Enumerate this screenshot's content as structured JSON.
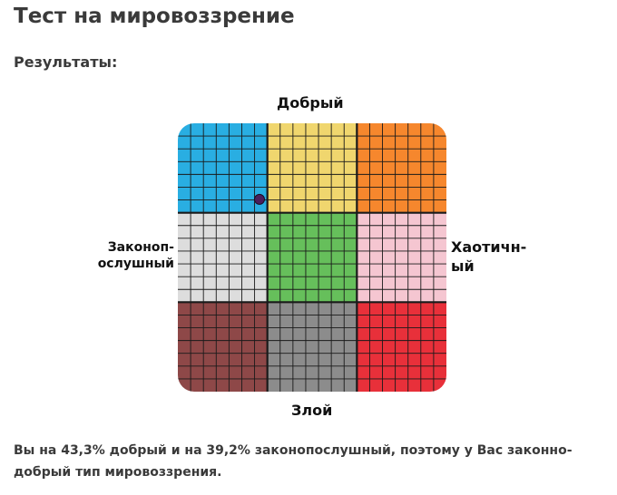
{
  "page": {
    "title": "Тест на мировоззрение",
    "subtitle": "Результаты:"
  },
  "chart_data": {
    "type": "alignment-grid",
    "axis_labels": {
      "top": "Добрый",
      "bottom": "Злой",
      "left": [
        "Законоп-",
        "ослушный"
      ],
      "right": [
        "Хаотичн-",
        "ый"
      ]
    },
    "cells": [
      [
        "#29aee2",
        "#f0d66e",
        "#f6872d"
      ],
      [
        "#dddddd",
        "#66bf5b",
        "#f5c6d1"
      ],
      [
        "#8e4848",
        "#8c8c8c",
        "#e8303a"
      ]
    ],
    "subdivisions": 7,
    "marker": {
      "good": 43.3,
      "lawful": 39.2,
      "color": "#4a1e5c"
    }
  },
  "result": {
    "text": "Вы на 43,3% добрый и на 39,2% законопослушный, поэтому у Вас законно-добрый тип мировоззрения."
  }
}
